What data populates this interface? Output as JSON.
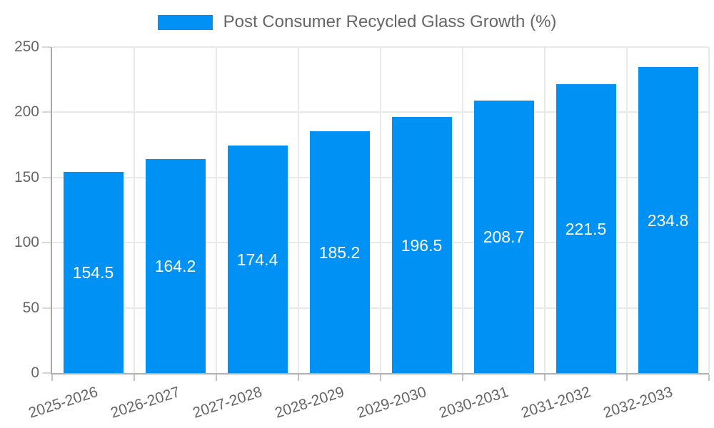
{
  "legend": {
    "label": "Post Consumer Recycled Glass Growth (%)"
  },
  "colors": {
    "bar": "#0091f5",
    "grid": "#e9e9e9",
    "axis_line": "#a8a8a8",
    "tick_mark": "#c3c3c3",
    "tick_text": "#666666",
    "legend_text": "#666666",
    "bar_value_text": "#ffffff",
    "background": "#ffffff"
  },
  "chart_data": {
    "type": "bar",
    "title": "",
    "categories": [
      "2025-2026",
      "2026-2027",
      "2027-2028",
      "2028-2029",
      "2029-2030",
      "2030-2031",
      "2031-2032",
      "2032-2033"
    ],
    "series": [
      {
        "name": "Post Consumer Recycled Glass Growth (%)",
        "values": [
          154.5,
          164.2,
          174.4,
          185.2,
          196.5,
          208.7,
          221.5,
          234.8
        ]
      }
    ],
    "value_labels": [
      "154.5",
      "164.2",
      "174.4",
      "185.2",
      "196.5",
      "208.7",
      "221.5",
      "234.8"
    ],
    "value_label_position": "center-of-bar",
    "xlabel": "",
    "ylabel": "",
    "y_ticks": [
      0,
      50,
      100,
      150,
      200,
      250
    ],
    "ylim": [
      0,
      250
    ],
    "grid": true,
    "legend_position": "top",
    "x_tick_rotation_deg": -18
  }
}
